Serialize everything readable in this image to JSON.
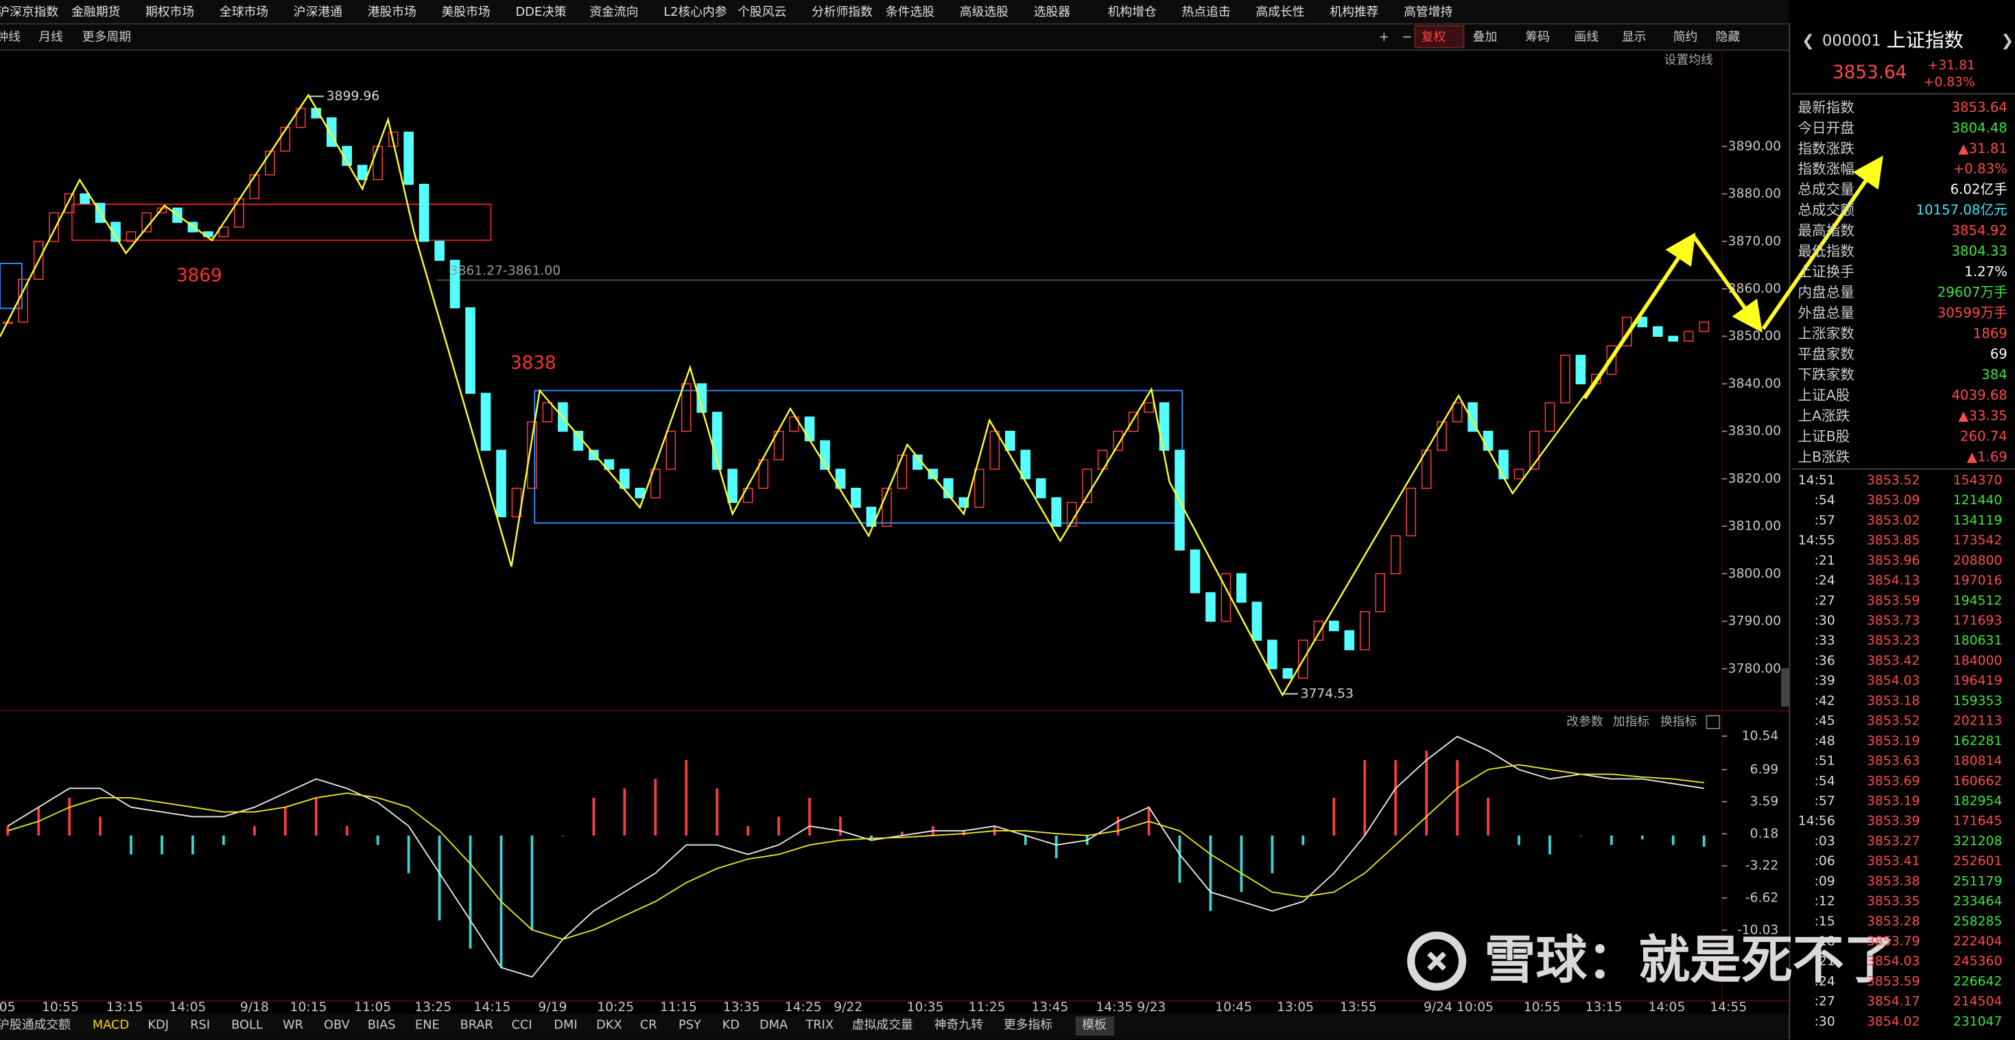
{
  "menu": [
    "沪深京指数",
    "金融期货",
    "期权市场",
    "全球市场",
    "沪深港通",
    "港股市场",
    "美股市场",
    "DDE决策",
    "资金流向",
    "L2核心内参",
    "个股风云",
    "分析师指数",
    "条件选股",
    "高级选股",
    "选股器",
    "机构增仓",
    "热点追击",
    "高成长性",
    "机构推荐",
    "高管增持"
  ],
  "toolbar_left": [
    "钟线",
    "月线",
    "更多周期"
  ],
  "toolbar_right": [
    "+",
    "−",
    "复权",
    "叠加",
    "筹码",
    "画线",
    "显示",
    "简约",
    "隐藏"
  ],
  "ma_setting": "设置均线",
  "chart_data": {
    "type": "candlestick",
    "closes": [
      3853,
      3862,
      3870,
      3876,
      3880,
      3878,
      3874,
      3870,
      3872,
      3876,
      3877,
      3874,
      3872,
      3871,
      3873,
      3879,
      3884,
      3889,
      3894,
      3898,
      3896,
      3890,
      3886,
      3883,
      3890,
      3893,
      3882,
      3870,
      3866,
      3856,
      3838,
      3826,
      3812,
      3818,
      3832,
      3836,
      3830,
      3826,
      3824,
      3822,
      3818,
      3816,
      3822,
      3830,
      3840,
      3834,
      3822,
      3815,
      3818,
      3824,
      3830,
      3833,
      3828,
      3822,
      3818,
      3814,
      3810,
      3818,
      3825,
      3822,
      3820,
      3816,
      3814,
      3822,
      3830,
      3826,
      3820,
      3816,
      3810,
      3815,
      3822,
      3826,
      3830,
      3834,
      3836,
      3826,
      3805,
      3796,
      3790,
      3800,
      3794,
      3786,
      3780,
      3778,
      3786,
      3790,
      3788,
      3784,
      3792,
      3800,
      3808,
      3818,
      3826,
      3832,
      3836,
      3830,
      3826,
      3820,
      3822,
      3830,
      3836,
      3846,
      3840,
      3842,
      3848,
      3854,
      3852,
      3850,
      3849,
      3851,
      3853
    ],
    "up_color": "#ff3c3c",
    "down_color": "#54ffff",
    "ylim": [
      3772,
      3910
    ],
    "yticks": [
      {
        "value": 3890,
        "label": "3890.00"
      },
      {
        "value": 3880,
        "label": "3880.00"
      },
      {
        "value": 3870,
        "label": "3870.00"
      },
      {
        "value": 3860,
        "label": "3860.00"
      },
      {
        "value": 3850,
        "label": "3850.00"
      },
      {
        "value": 3840,
        "label": "3840.00"
      },
      {
        "value": 3830,
        "label": "3830.00"
      },
      {
        "value": 3820,
        "label": "3820.00"
      },
      {
        "value": 3810,
        "label": "3810.00"
      },
      {
        "value": 3800,
        "label": "3800.00"
      },
      {
        "value": 3790,
        "label": "3790.00"
      },
      {
        "value": 3780,
        "label": "3780.00"
      }
    ],
    "x_labels": [
      ":05",
      "10:55",
      "13:15",
      "14:05",
      "9/18",
      "10:15",
      "11:05",
      "13:25",
      "14:15",
      "9/19",
      "10:25",
      "11:15",
      "13:35",
      "14:25",
      "9/22",
      "10:35",
      "11:25",
      "13:45",
      "14:35 9/23",
      "10:45",
      "13:05",
      "13:55",
      "9/24 10:05",
      "10:55",
      "13:15",
      "14:05",
      "14:55"
    ],
    "annotations": {
      "high": "3899.96",
      "low": "3774.53",
      "ref_line": "3861.27-3861.00",
      "level1": "3869",
      "level2": "3838"
    }
  },
  "macd": {
    "type": "bar",
    "controls": [
      "改参数",
      "加指标",
      "换指标"
    ],
    "ylim": [
      -17,
      12.3
    ],
    "yticks": [
      10.54,
      6.99,
      3.59,
      0.18,
      -3.22,
      -6.62,
      -10.03
    ],
    "histogram": [
      1,
      3,
      4,
      2,
      -2,
      -2,
      -2,
      -1,
      1,
      3,
      4,
      1,
      -1,
      -4,
      -9,
      -12,
      -14,
      -10,
      0,
      4,
      5,
      6,
      8,
      5,
      1,
      2,
      4,
      2,
      -0.4,
      0.4,
      1,
      0.6,
      1,
      -1,
      -2.4,
      -1,
      2,
      3,
      -5,
      -8,
      -6,
      -4,
      -1,
      4,
      8,
      8,
      9,
      8,
      4,
      -1,
      -2,
      0,
      -1,
      -0.4,
      -1,
      -1.2
    ],
    "dif": [
      1,
      3,
      5,
      5,
      3,
      2.5,
      2,
      2,
      3,
      4.5,
      6,
      5,
      3.5,
      1,
      -4,
      -9,
      -14,
      -15,
      -11,
      -8,
      -6,
      -4,
      -1,
      -1,
      -2,
      -1,
      1,
      0.5,
      -0.5,
      0,
      0.5,
      0.5,
      1,
      0,
      -1,
      -0.5,
      1.5,
      3,
      -2,
      -6,
      -7,
      -8,
      -7,
      -4,
      0,
      5,
      8,
      10.5,
      9,
      7,
      6,
      6.5,
      6,
      6,
      5.5,
      5
    ],
    "dea": [
      0.5,
      1.5,
      3,
      4,
      4,
      3.5,
      3,
      2.5,
      2.5,
      3,
      4,
      4.5,
      4,
      3,
      0.5,
      -3,
      -7,
      -10,
      -11,
      -10,
      -8.5,
      -7,
      -5,
      -3.5,
      -2.5,
      -2,
      -1,
      -0.5,
      -0.3,
      -0.2,
      0,
      0.2,
      0.5,
      0.5,
      0.2,
      0,
      0.5,
      1.5,
      0.5,
      -2,
      -4,
      -6,
      -6.5,
      -6,
      -4,
      -1,
      2,
      5,
      7,
      7.5,
      7,
      6.5,
      6.5,
      6.2,
      6,
      5.6
    ],
    "dif_color": "#e8e8e8",
    "dea_color": "#e6e61e"
  },
  "indicator_tabs": [
    "沪股通成交额",
    "MACD",
    "KDJ",
    "RSI",
    "BOLL",
    "WR",
    "OBV",
    "BIAS",
    "ENE",
    "BRAR",
    "CCI",
    "DMI",
    "DKX",
    "CR",
    "PSY",
    "KD",
    "DMA",
    "TRIX",
    "虚拟成交量",
    "神奇九转",
    "更多指标",
    "模板"
  ],
  "active_tab_index": 1,
  "quote": {
    "code": "000001",
    "name": "上证指数",
    "price": "3853.64",
    "change": "+31.81",
    "change_pct": "+0.83%"
  },
  "stats": [
    {
      "label": "最新指数",
      "value": "3853.64",
      "color": "#ff4a4a"
    },
    {
      "label": "今日开盘",
      "value": "3804.48",
      "color": "#3ce63c"
    },
    {
      "label": "指数涨跌",
      "value": "▲31.81",
      "color": "#ff4a4a"
    },
    {
      "label": "指数涨幅",
      "value": "+0.83%",
      "color": "#ff4a4a"
    },
    {
      "label": "总成交量",
      "value": "6.02亿手",
      "color": "#ffffff"
    },
    {
      "label": "总成交额",
      "value": "10157.08亿元",
      "color": "#3ee8ff"
    },
    {
      "label": "最高指数",
      "value": "3854.92",
      "color": "#ff4a4a"
    },
    {
      "label": "最低指数",
      "value": "3804.33",
      "color": "#3ce63c"
    },
    {
      "label": "上证换手",
      "value": "1.27%",
      "color": "#ffffff"
    },
    {
      "label": "内盘总量",
      "value": "29607万手",
      "color": "#3ce63c"
    },
    {
      "label": "外盘总量",
      "value": "30599万手",
      "color": "#ff4a4a"
    },
    {
      "label": "上涨家数",
      "value": "1869",
      "color": "#ff4a4a"
    },
    {
      "label": "平盘家数",
      "value": "69",
      "color": "#ffffff"
    },
    {
      "label": "下跌家数",
      "value": "384",
      "color": "#3ce63c"
    },
    {
      "label": "上证A股",
      "value": "4039.68",
      "color": "#ff4a4a"
    },
    {
      "label": "上A涨跌",
      "value": "▲33.35",
      "color": "#ff4a4a"
    },
    {
      "label": "上证B股",
      "value": "260.74",
      "color": "#ff4a4a"
    },
    {
      "label": "上B涨跌",
      "value": "▲1.69",
      "color": "#ff4a4a"
    }
  ],
  "ticks": [
    {
      "time": "14:51",
      "price": "3853.52",
      "volume": "154370",
      "vol_color": "#ff4a4a"
    },
    {
      "time": ":54",
      "price": "3853.09",
      "volume": "121440",
      "vol_color": "#3ce63c"
    },
    {
      "time": ":57",
      "price": "3853.02",
      "volume": "134119",
      "vol_color": "#3ce63c"
    },
    {
      "time": "14:55",
      "price": "3853.85",
      "volume": "173542",
      "vol_color": "#ff4a4a"
    },
    {
      "time": ":21",
      "price": "3853.96",
      "volume": "208800",
      "vol_color": "#ff4a4a"
    },
    {
      "time": ":24",
      "price": "3854.13",
      "volume": "197016",
      "vol_color": "#ff4a4a"
    },
    {
      "time": ":27",
      "price": "3853.59",
      "volume": "194512",
      "vol_color": "#3ce63c"
    },
    {
      "time": ":30",
      "price": "3853.73",
      "volume": "171693",
      "vol_color": "#ff4a4a"
    },
    {
      "time": ":33",
      "price": "3853.23",
      "volume": "180631",
      "vol_color": "#3ce63c"
    },
    {
      "time": ":36",
      "price": "3853.42",
      "volume": "184000",
      "vol_color": "#ff4a4a"
    },
    {
      "time": ":39",
      "price": "3854.03",
      "volume": "196419",
      "vol_color": "#ff4a4a"
    },
    {
      "time": ":42",
      "price": "3853.18",
      "volume": "159353",
      "vol_color": "#3ce63c"
    },
    {
      "time": ":45",
      "price": "3853.52",
      "volume": "202113",
      "vol_color": "#ff4a4a"
    },
    {
      "time": ":48",
      "price": "3853.19",
      "volume": "162281",
      "vol_color": "#3ce63c"
    },
    {
      "time": ":51",
      "price": "3853.63",
      "volume": "180814",
      "vol_color": "#ff4a4a"
    },
    {
      "time": ":54",
      "price": "3853.69",
      "volume": "160662",
      "vol_color": "#ff4a4a"
    },
    {
      "time": ":57",
      "price": "3853.19",
      "volume": "182954",
      "vol_color": "#3ce63c"
    },
    {
      "time": "14:56",
      "price": "3853.39",
      "volume": "171645",
      "vol_color": "#ff4a4a"
    },
    {
      "time": ":03",
      "price": "3853.27",
      "volume": "321208",
      "vol_color": "#3ce63c"
    },
    {
      "time": ":06",
      "price": "3853.41",
      "volume": "252601",
      "vol_color": "#ff4a4a"
    },
    {
      "time": ":09",
      "price": "3853.38",
      "volume": "251179",
      "vol_color": "#3ce63c"
    },
    {
      "time": ":12",
      "price": "3853.35",
      "volume": "233464",
      "vol_color": "#3ce63c"
    },
    {
      "time": ":15",
      "price": "3853.28",
      "volume": "258285",
      "vol_color": "#3ce63c"
    },
    {
      "time": ":18",
      "price": "3853.79",
      "volume": "222404",
      "vol_color": "#ff4a4a"
    },
    {
      "time": ":21",
      "price": "3854.03",
      "volume": "245360",
      "vol_color": "#ff4a4a"
    },
    {
      "time": ":24",
      "price": "3853.59",
      "volume": "226642",
      "vol_color": "#3ce63c"
    },
    {
      "time": ":27",
      "price": "3854.17",
      "volume": "214504",
      "vol_color": "#ff4a4a"
    },
    {
      "time": ":30",
      "price": "3854.02",
      "volume": "231047",
      "vol_color": "#3ce63c"
    }
  ],
  "watermark": "雪球：就是死不了"
}
